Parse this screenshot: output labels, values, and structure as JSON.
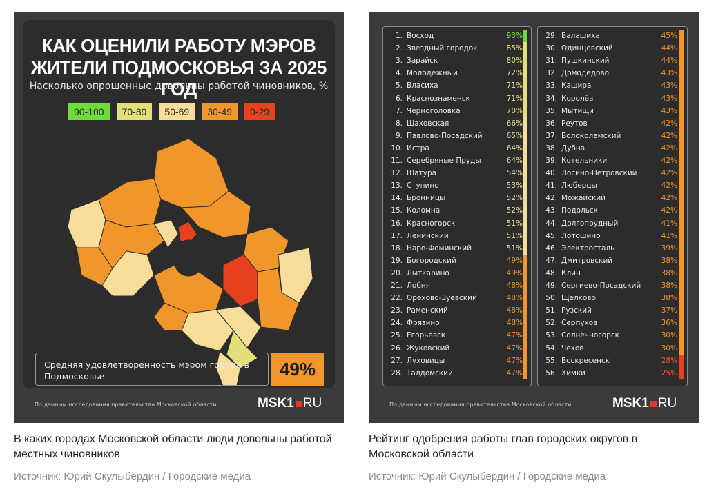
{
  "left": {
    "title_line1": "КАК ОЦЕНИЛИ РАБОТУ МЭРОВ",
    "title_line2": "ЖИТЕЛИ ПОДМОСКОВЬЯ ЗА 2025 ГОД",
    "subtitle": "Насколько опрошенные довольны работой чиновников, %",
    "legend": [
      {
        "label": "90-100",
        "color": "#6fdc3a"
      },
      {
        "label": "70-89",
        "color": "#e3e07a"
      },
      {
        "label": "50-69",
        "color": "#f7dd9a"
      },
      {
        "label": "30-49",
        "color": "#f0962a"
      },
      {
        "label": "0-29",
        "color": "#e8411e"
      }
    ],
    "avg_label": "Средняя удовлетворенность мэром города в Подмосковье",
    "avg_value": "49%",
    "footnote": "По данным исследования правительства Московской области",
    "logo_main": "MSK1",
    "logo_suffix": "RU",
    "caption": "В каких городах Московской области люди довольны работой местных чиновников",
    "source": "Источник: Юрий Скулыбердин / Городские медиа"
  },
  "right": {
    "footnote": "По данным исследования правительства Московской области",
    "logo_main": "MSK1",
    "logo_suffix": "RU",
    "caption": "Рейтинг одобрения работы глав городских округов в Московской области",
    "source": "Источник: Юрий Скулыбердин / Городские медиа"
  },
  "chart_data": {
    "type": "table",
    "title": "КАК ОЦЕНИЛИ РАБОТУ МЭРОВ ЖИТЕЛИ ПОДМОСКОВЬЯ ЗА 2025 ГОД",
    "unit": "%",
    "rows": [
      {
        "rank": "1.",
        "name": "Восход",
        "value": 93
      },
      {
        "rank": "2.",
        "name": "Звездный городок",
        "value": 85
      },
      {
        "rank": "3.",
        "name": "Зарайск",
        "value": 80
      },
      {
        "rank": "4.",
        "name": "Молодежный",
        "value": 72
      },
      {
        "rank": "5.",
        "name": "Власиха",
        "value": 71
      },
      {
        "rank": "6.",
        "name": "Краснознаменск",
        "value": 71
      },
      {
        "rank": "7.",
        "name": "Черноголовка",
        "value": 70
      },
      {
        "rank": "8.",
        "name": "Шаховская",
        "value": 66
      },
      {
        "rank": "9.",
        "name": "Павлово-Посадский",
        "value": 65
      },
      {
        "rank": "10.",
        "name": "Истра",
        "value": 64
      },
      {
        "rank": "11.",
        "name": "Серебряные Пруды",
        "value": 64
      },
      {
        "rank": "12.",
        "name": "Шатура",
        "value": 54
      },
      {
        "rank": "13.",
        "name": "Ступино",
        "value": 53
      },
      {
        "rank": "14.",
        "name": "Бронницы",
        "value": 52
      },
      {
        "rank": "15.",
        "name": "Коломна",
        "value": 52
      },
      {
        "rank": "16.",
        "name": "Красногорск",
        "value": 51
      },
      {
        "rank": "17.",
        "name": "Ленинский",
        "value": 51
      },
      {
        "rank": "18.",
        "name": "Наро-Фоминский",
        "value": 51
      },
      {
        "rank": "19.",
        "name": "Богородский",
        "value": 49
      },
      {
        "rank": "20.",
        "name": "Лыткарино",
        "value": 49
      },
      {
        "rank": "21.",
        "name": "Лобня",
        "value": 48
      },
      {
        "rank": "22.",
        "name": "Орехово-Зуевский",
        "value": 48
      },
      {
        "rank": "23.",
        "name": "Раменский",
        "value": 48
      },
      {
        "rank": "24.",
        "name": "Фрязино",
        "value": 48
      },
      {
        "rank": "25.",
        "name": "Егорьевск",
        "value": 47
      },
      {
        "rank": "26.",
        "name": "Жуковский",
        "value": 47
      },
      {
        "rank": "27.",
        "name": "Луховицы",
        "value": 47
      },
      {
        "rank": "28.",
        "name": "Талдомский",
        "value": 47
      },
      {
        "rank": "29.",
        "name": "Балашиха",
        "value": 45
      },
      {
        "rank": "30.",
        "name": "Одинцовский",
        "value": 44
      },
      {
        "rank": "31.",
        "name": "Пушкинский",
        "value": 44
      },
      {
        "rank": "32.",
        "name": "Домодедово",
        "value": 43
      },
      {
        "rank": "33.",
        "name": "Кашира",
        "value": 43
      },
      {
        "rank": "34.",
        "name": "Королёв",
        "value": 43
      },
      {
        "rank": "35.",
        "name": "Мытищи",
        "value": 43
      },
      {
        "rank": "36.",
        "name": "Реутов",
        "value": 42
      },
      {
        "rank": "37.",
        "name": "Волоколамский",
        "value": 42
      },
      {
        "rank": "38.",
        "name": "Дубна",
        "value": 42
      },
      {
        "rank": "39.",
        "name": "Котельники",
        "value": 42
      },
      {
        "rank": "40.",
        "name": "Лосино-Петровский",
        "value": 42
      },
      {
        "rank": "41.",
        "name": "Люберцы",
        "value": 42
      },
      {
        "rank": "42.",
        "name": "Можайский",
        "value": 42
      },
      {
        "rank": "43.",
        "name": "Подольск",
        "value": 42
      },
      {
        "rank": "44.",
        "name": "Долгопрудный",
        "value": 41
      },
      {
        "rank": "45.",
        "name": "Лотошино",
        "value": 41
      },
      {
        "rank": "46.",
        "name": "Электросталь",
        "value": 39
      },
      {
        "rank": "47.",
        "name": "Дмитровский",
        "value": 38
      },
      {
        "rank": "48.",
        "name": "Клин",
        "value": 38
      },
      {
        "rank": "49.",
        "name": "Сергиево-Посадский",
        "value": 38
      },
      {
        "rank": "50.",
        "name": "Щелково",
        "value": 38
      },
      {
        "rank": "51.",
        "name": "Рузский",
        "value": 37
      },
      {
        "rank": "52.",
        "name": "Серпухов",
        "value": 36
      },
      {
        "rank": "53.",
        "name": "Солнечногорск",
        "value": 30
      },
      {
        "rank": "54.",
        "name": "Чехов",
        "value": 30
      },
      {
        "rank": "55.",
        "name": "Воскресенск",
        "value": 28
      },
      {
        "rank": "56.",
        "name": "Химки",
        "value": 25
      }
    ]
  }
}
